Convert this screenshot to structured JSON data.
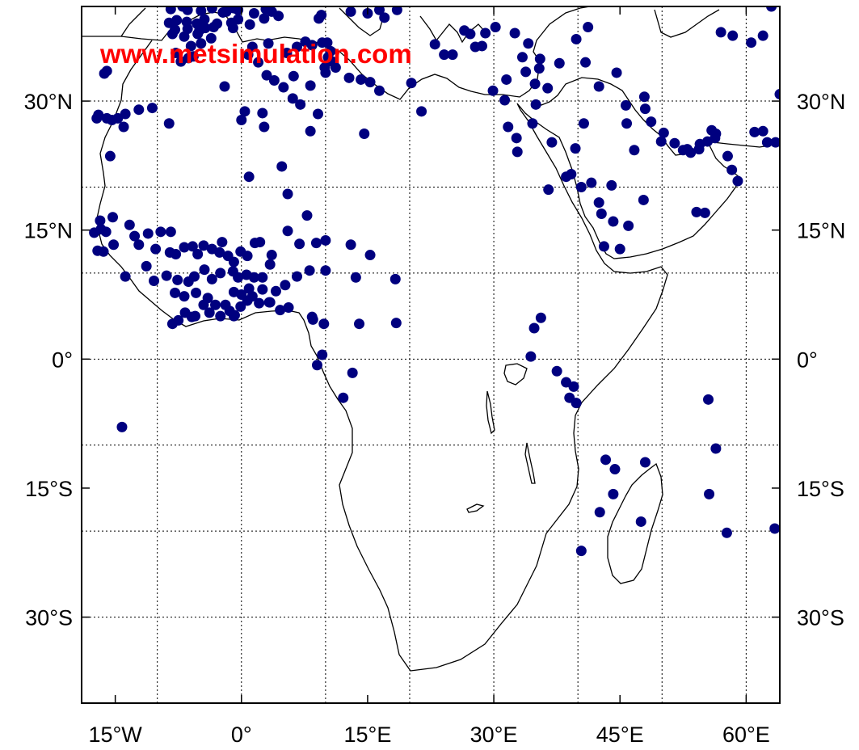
{
  "map": {
    "watermark": "www.metsimulation.com",
    "lon_range": [
      -19,
      64
    ],
    "lat_range": [
      -40,
      41
    ],
    "grid": true,
    "colors": {
      "station": "#00007f",
      "coastline": "#000000",
      "grid": "#000000",
      "watermark": "#ff0000",
      "background": "#ffffff"
    },
    "lat_gridlines": [
      30,
      20,
      10,
      0,
      -10,
      -20,
      -30
    ],
    "lon_gridlines": [
      -10,
      0,
      10,
      20,
      30,
      40,
      50,
      60
    ],
    "lon_ticks": [
      {
        "value": -15,
        "label": "15°W"
      },
      {
        "value": 0,
        "label": "0°"
      },
      {
        "value": 15,
        "label": "15°E"
      },
      {
        "value": 30,
        "label": "30°E"
      },
      {
        "value": 45,
        "label": "45°E"
      },
      {
        "value": 60,
        "label": "60°E"
      }
    ],
    "lat_ticks": [
      {
        "value": 30,
        "label": "30°N"
      },
      {
        "value": 15,
        "label": "15°N"
      },
      {
        "value": 0,
        "label": "0°"
      },
      {
        "value": -15,
        "label": "15°S"
      },
      {
        "value": -30,
        "label": "30°S"
      }
    ],
    "stations": [
      [
        -8.4,
        40.7
      ],
      [
        -6.4,
        40.6
      ],
      [
        -4.8,
        40.5
      ],
      [
        -3.5,
        40.8
      ],
      [
        -1.8,
        40.4
      ],
      [
        -0.4,
        40.6
      ],
      [
        1.5,
        40.2
      ],
      [
        2.9,
        40.7
      ],
      [
        3.6,
        40.4
      ],
      [
        -8.6,
        39.1
      ],
      [
        -6.5,
        39.2
      ],
      [
        -5.3,
        39.0
      ],
      [
        -2.9,
        39.0
      ],
      [
        -1.2,
        39.1
      ],
      [
        -8.2,
        37.8
      ],
      [
        -6.8,
        37.5
      ],
      [
        -5.2,
        37.8
      ],
      [
        -3.6,
        37.3
      ],
      [
        -5.0,
        38.2
      ],
      [
        -4.8,
        36.7
      ],
      [
        -6.0,
        36.4
      ],
      [
        -7.8,
        35.6
      ],
      [
        -7.2,
        34.6
      ],
      [
        -6.3,
        35.0
      ],
      [
        -5.7,
        35.2
      ],
      [
        -16.3,
        33.2
      ],
      [
        -16.0,
        33.5
      ],
      [
        -17.0,
        28.4
      ],
      [
        -16.0,
        28.0
      ],
      [
        -17.2,
        28.0
      ],
      [
        -14.7,
        28.0
      ],
      [
        -13.8,
        28.5
      ],
      [
        -15.4,
        27.8
      ],
      [
        -12.2,
        29.0
      ],
      [
        -10.6,
        29.2
      ],
      [
        -8.6,
        27.4
      ],
      [
        -14.0,
        27.0
      ],
      [
        -15.6,
        23.6
      ],
      [
        -2.0,
        31.7
      ],
      [
        0.0,
        27.8
      ],
      [
        0.4,
        28.8
      ],
      [
        2.5,
        28.6
      ],
      [
        2.7,
        27.0
      ],
      [
        0.8,
        35.4
      ],
      [
        3.2,
        36.7
      ],
      [
        1.3,
        36.3
      ],
      [
        2.0,
        34.5
      ],
      [
        3.0,
        33.0
      ],
      [
        3.9,
        32.4
      ],
      [
        5.0,
        31.6
      ],
      [
        5.4,
        35.6
      ],
      [
        6.6,
        36.3
      ],
      [
        7.6,
        36.9
      ],
      [
        8.4,
        36.5
      ],
      [
        9.6,
        36.8
      ],
      [
        10.2,
        36.8
      ],
      [
        10.6,
        35.8
      ],
      [
        10.8,
        34.6
      ],
      [
        9.9,
        33.9
      ],
      [
        11.2,
        33.9
      ],
      [
        10.3,
        35.1
      ],
      [
        10.0,
        33.3
      ],
      [
        12.8,
        32.7
      ],
      [
        14.2,
        32.5
      ],
      [
        15.3,
        32.2
      ],
      [
        16.4,
        31.2
      ],
      [
        20.2,
        32.1
      ],
      [
        21.4,
        28.8
      ],
      [
        6.2,
        32.9
      ],
      [
        8.2,
        31.8
      ],
      [
        6.1,
        30.3
      ],
      [
        7.0,
        29.6
      ],
      [
        9.1,
        28.5
      ],
      [
        8.2,
        26.5
      ],
      [
        4.8,
        22.4
      ],
      [
        0.9,
        21.2
      ],
      [
        5.5,
        19.2
      ],
      [
        7.8,
        16.7
      ],
      [
        5.5,
        14.9
      ],
      [
        10.0,
        13.8
      ],
      [
        8.9,
        13.5
      ],
      [
        6.9,
        13.4
      ],
      [
        13.0,
        13.3
      ],
      [
        15.3,
        12.1
      ],
      [
        13.6,
        9.5
      ],
      [
        18.3,
        9.3
      ],
      [
        10.0,
        10.3
      ],
      [
        8.1,
        10.3
      ],
      [
        6.6,
        9.6
      ],
      [
        5.2,
        8.6
      ],
      [
        4.1,
        7.9
      ],
      [
        3.3,
        6.6
      ],
      [
        8.4,
        4.9
      ],
      [
        8.5,
        4.6
      ],
      [
        9.8,
        4.1
      ],
      [
        14.0,
        4.1
      ],
      [
        18.4,
        4.2
      ],
      [
        9.6,
        0.5
      ],
      [
        9.0,
        -0.7
      ],
      [
        13.2,
        -1.6
      ],
      [
        12.1,
        -4.5
      ],
      [
        -14.2,
        -7.9
      ],
      [
        -17.5,
        14.7
      ],
      [
        -16.1,
        14.8
      ],
      [
        -17.1,
        12.6
      ],
      [
        -15.2,
        13.3
      ],
      [
        -16.4,
        12.5
      ],
      [
        -16.7,
        15.1
      ],
      [
        -16.8,
        16.1
      ],
      [
        -15.3,
        16.5
      ],
      [
        -13.3,
        15.6
      ],
      [
        -12.7,
        14.3
      ],
      [
        -12.2,
        13.3
      ],
      [
        -11.1,
        14.6
      ],
      [
        -9.6,
        14.8
      ],
      [
        -10.2,
        12.8
      ],
      [
        -8.5,
        12.4
      ],
      [
        -8.4,
        14.8
      ],
      [
        -7.8,
        12.2
      ],
      [
        -6.8,
        13.0
      ],
      [
        -5.8,
        13.1
      ],
      [
        -5.2,
        12.2
      ],
      [
        -4.5,
        13.2
      ],
      [
        -3.5,
        12.8
      ],
      [
        -2.6,
        12.4
      ],
      [
        -2.3,
        13.6
      ],
      [
        -1.6,
        12.0
      ],
      [
        -0.9,
        11.3
      ],
      [
        -0.1,
        12.5
      ],
      [
        0.7,
        12.0
      ],
      [
        1.6,
        13.5
      ],
      [
        2.2,
        13.6
      ],
      [
        3.6,
        12.1
      ],
      [
        3.4,
        11.0
      ],
      [
        2.5,
        9.5
      ],
      [
        1.5,
        9.5
      ],
      [
        0.6,
        9.8
      ],
      [
        -1.0,
        10.2
      ],
      [
        -2.5,
        10.0
      ],
      [
        -3.5,
        9.3
      ],
      [
        -4.4,
        10.4
      ],
      [
        -5.6,
        9.6
      ],
      [
        -6.3,
        9.0
      ],
      [
        -7.6,
        9.2
      ],
      [
        -8.9,
        9.7
      ],
      [
        -10.4,
        9.1
      ],
      [
        -11.3,
        10.8
      ],
      [
        -13.8,
        9.6
      ],
      [
        -7.9,
        7.7
      ],
      [
        -6.8,
        7.3
      ],
      [
        -5.4,
        7.7
      ],
      [
        -4.0,
        7.1
      ],
      [
        -3.1,
        6.3
      ],
      [
        -1.9,
        6.3
      ],
      [
        -0.1,
        6.1
      ],
      [
        0.7,
        6.8
      ],
      [
        1.3,
        7.3
      ],
      [
        2.1,
        6.5
      ],
      [
        3.4,
        6.6
      ],
      [
        -1.4,
        5.6
      ],
      [
        -2.5,
        5.0
      ],
      [
        -3.8,
        5.4
      ],
      [
        -5.5,
        5.0
      ],
      [
        -7.5,
        4.5
      ],
      [
        -8.2,
        4.1
      ],
      [
        -0.8,
        5.1
      ],
      [
        0.0,
        7.5
      ],
      [
        0.9,
        8.2
      ],
      [
        -0.9,
        7.8
      ],
      [
        -0.4,
        9.5
      ],
      [
        -0.9,
        5.0
      ],
      [
        -4.5,
        6.3
      ],
      [
        -6.7,
        5.4
      ],
      [
        -5.9,
        4.9
      ],
      [
        4.6,
        5.7
      ],
      [
        5.6,
        6.0
      ],
      [
        2.5,
        8.1
      ],
      [
        14.6,
        26.2
      ],
      [
        23.0,
        36.6
      ],
      [
        24.1,
        35.4
      ],
      [
        25.1,
        35.4
      ],
      [
        26.5,
        38.2
      ],
      [
        27.2,
        37.8
      ],
      [
        27.8,
        36.3
      ],
      [
        28.6,
        36.4
      ],
      [
        29.0,
        37.9
      ],
      [
        30.2,
        38.6
      ],
      [
        32.5,
        37.9
      ],
      [
        33.4,
        35.1
      ],
      [
        34.1,
        36.7
      ],
      [
        35.5,
        34.9
      ],
      [
        34.9,
        32.0
      ],
      [
        35.4,
        33.8
      ],
      [
        33.8,
        33.4
      ],
      [
        31.5,
        32.5
      ],
      [
        29.9,
        31.2
      ],
      [
        31.3,
        30.1
      ],
      [
        31.7,
        27.0
      ],
      [
        32.7,
        25.7
      ],
      [
        32.8,
        24.1
      ],
      [
        34.6,
        27.4
      ],
      [
        35.0,
        29.6
      ],
      [
        36.4,
        31.5
      ],
      [
        37.8,
        34.4
      ],
      [
        40.9,
        34.5
      ],
      [
        39.8,
        37.2
      ],
      [
        41.2,
        38.6
      ],
      [
        44.6,
        33.3
      ],
      [
        42.5,
        31.7
      ],
      [
        45.7,
        29.5
      ],
      [
        47.9,
        30.5
      ],
      [
        48.0,
        29.1
      ],
      [
        50.2,
        26.3
      ],
      [
        49.9,
        25.3
      ],
      [
        51.5,
        25.1
      ],
      [
        53.0,
        24.4
      ],
      [
        54.4,
        24.4
      ],
      [
        55.4,
        25.3
      ],
      [
        56.3,
        25.7
      ],
      [
        57.8,
        23.6
      ],
      [
        58.3,
        22.0
      ],
      [
        59.0,
        20.7
      ],
      [
        55.1,
        17.0
      ],
      [
        54.1,
        17.1
      ],
      [
        46.0,
        15.5
      ],
      [
        44.2,
        16.0
      ],
      [
        43.1,
        13.1
      ],
      [
        45.0,
        12.8
      ],
      [
        42.8,
        16.9
      ],
      [
        44.0,
        20.2
      ],
      [
        46.7,
        24.3
      ],
      [
        45.8,
        27.4
      ],
      [
        48.7,
        27.6
      ],
      [
        40.7,
        27.4
      ],
      [
        39.7,
        24.5
      ],
      [
        36.9,
        25.2
      ],
      [
        38.6,
        21.2
      ],
      [
        39.2,
        21.5
      ],
      [
        40.4,
        20.0
      ],
      [
        36.5,
        19.7
      ],
      [
        42.5,
        18.2
      ],
      [
        47.8,
        18.5
      ],
      [
        41.6,
        20.5
      ],
      [
        52.5,
        24.3
      ],
      [
        53.4,
        24.0
      ],
      [
        54.5,
        25.0
      ],
      [
        55.9,
        26.6
      ],
      [
        56.4,
        26.2
      ],
      [
        61.0,
        26.4
      ],
      [
        62.0,
        26.5
      ],
      [
        62.5,
        25.2
      ],
      [
        63.5,
        25.2
      ],
      [
        64.0,
        30.8
      ],
      [
        57.0,
        38.0
      ],
      [
        58.4,
        37.6
      ],
      [
        60.6,
        36.8
      ],
      [
        62.0,
        37.6
      ],
      [
        63.0,
        41.0
      ],
      [
        34.8,
        3.6
      ],
      [
        35.6,
        4.8
      ],
      [
        34.4,
        0.3
      ],
      [
        37.5,
        -1.4
      ],
      [
        38.6,
        -2.7
      ],
      [
        39.5,
        -3.2
      ],
      [
        39.0,
        -4.5
      ],
      [
        39.8,
        -5.1
      ],
      [
        43.3,
        -11.7
      ],
      [
        44.4,
        -12.8
      ],
      [
        48.0,
        -12.0
      ],
      [
        47.5,
        -18.9
      ],
      [
        44.2,
        -15.7
      ],
      [
        42.6,
        -17.8
      ],
      [
        40.4,
        -22.3
      ],
      [
        55.5,
        -4.7
      ],
      [
        56.4,
        -10.4
      ],
      [
        55.6,
        -15.7
      ],
      [
        57.7,
        -20.2
      ],
      [
        63.4,
        -19.7
      ],
      [
        18.5,
        40.6
      ],
      [
        17.0,
        39.7
      ],
      [
        16.4,
        40.6
      ],
      [
        15.0,
        40.2
      ],
      [
        13.0,
        40.4
      ],
      [
        9.5,
        40.0
      ],
      [
        -1.0,
        38.5
      ],
      [
        4.4,
        39.9
      ],
      [
        2.7,
        39.6
      ],
      [
        -7.7,
        39.4
      ],
      [
        -7.0,
        41.0
      ],
      [
        -4.4,
        39.5
      ],
      [
        9.2,
        39.6
      ],
      [
        -0.4,
        39.5
      ],
      [
        1.0,
        38.9
      ],
      [
        -6.4,
        38.4
      ],
      [
        -7.9,
        38.3
      ],
      [
        -3.3,
        38.6
      ],
      [
        -4.3,
        38.5
      ],
      [
        -0.9,
        40.8
      ],
      [
        -2.2,
        40.3
      ]
    ]
  }
}
